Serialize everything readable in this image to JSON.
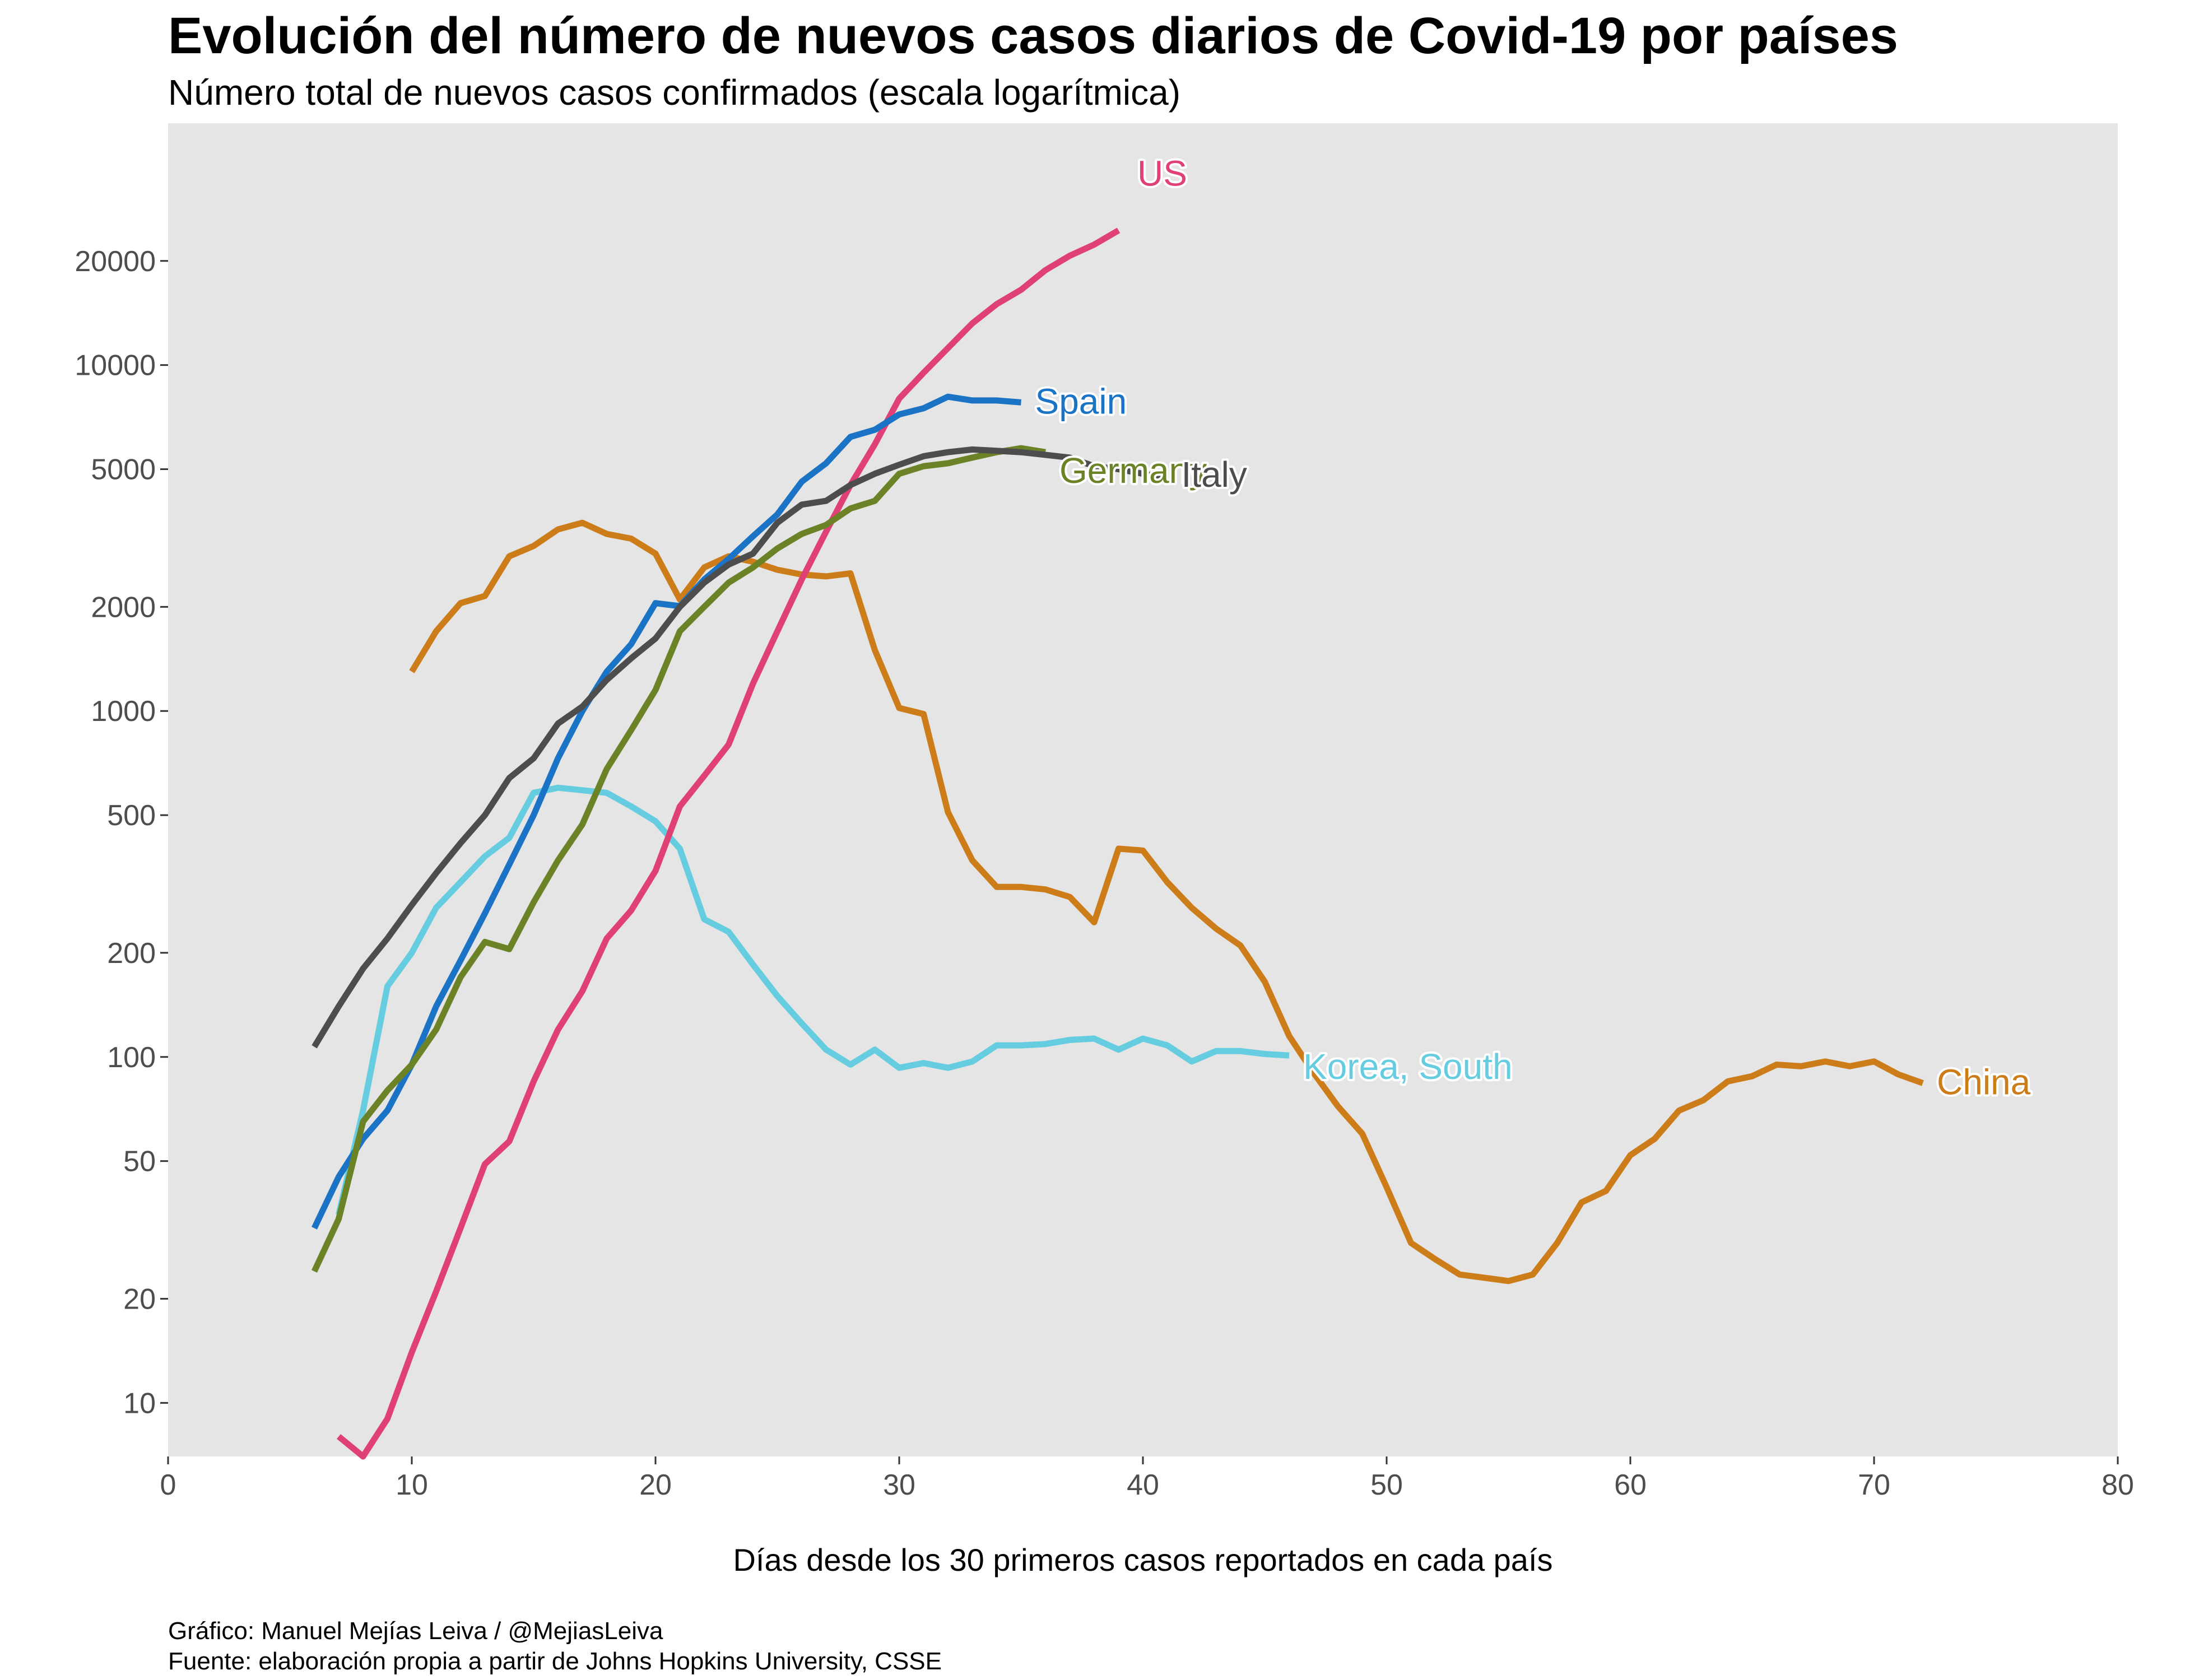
{
  "title": "Evolución del número de nuevos casos diarios de Covid-19 por países",
  "subtitle": "Número total de nuevos casos confirmados (escala logarítmica)",
  "caption": {
    "line1": "Gráfico: Manuel Mejías Leiva / @MejiasLeiva",
    "line2": "Fuente: elaboración propia a partir de Johns Hopkins University, CSSE"
  },
  "chart_data": {
    "type": "line",
    "title": "Evolución del número de nuevos casos diarios de Covid-19 por países",
    "subtitle": "Número total de nuevos casos confirmados (escala logarítmica)",
    "xlabel": "Días desde los 30 primeros casos reportados en cada país",
    "ylabel": "",
    "xlim": [
      0,
      80
    ],
    "ylim": [
      7,
      50000
    ],
    "yscale": "log",
    "grid": false,
    "background": "#e5e5e5",
    "xticks": [
      0,
      10,
      20,
      30,
      40,
      50,
      60,
      70,
      80
    ],
    "yticks": [
      10,
      20,
      50,
      100,
      200,
      500,
      1000,
      2000,
      5000,
      10000,
      20000
    ],
    "series": [
      {
        "name": "China",
        "color": "#cc7d1a",
        "x": [
          10,
          11,
          12,
          13,
          14,
          15,
          16,
          17,
          18,
          19,
          20,
          21,
          22,
          23,
          24,
          25,
          26,
          27,
          28,
          29,
          30,
          31,
          32,
          33,
          34,
          35,
          36,
          37,
          38,
          39,
          40,
          41,
          42,
          43,
          44,
          45,
          46,
          47,
          48,
          49,
          50,
          51,
          52,
          53,
          54,
          55,
          56,
          57,
          58,
          59,
          60,
          61,
          62,
          63,
          64,
          65,
          66,
          67,
          68,
          69,
          70,
          71,
          72
        ],
        "y": [
          1300,
          1700,
          2050,
          2150,
          2800,
          3000,
          3350,
          3500,
          3250,
          3150,
          2850,
          2100,
          2600,
          2800,
          2700,
          2560,
          2480,
          2450,
          2500,
          1500,
          1020,
          980,
          510,
          370,
          310,
          310,
          305,
          290,
          245,
          400,
          395,
          320,
          270,
          235,
          210,
          165,
          115,
          90,
          72,
          60,
          42,
          29,
          26,
          23.5,
          23,
          22.5,
          23.5,
          29,
          38,
          41,
          52,
          58,
          70,
          75,
          85,
          88,
          95,
          94,
          97,
          94,
          97,
          89,
          84
        ]
      },
      {
        "name": "Korea, South",
        "color": "#66cce0",
        "x": [
          7,
          8,
          9,
          10,
          11,
          12,
          13,
          14,
          15,
          16,
          17,
          18,
          19,
          20,
          21,
          22,
          23,
          24,
          25,
          26,
          27,
          28,
          29,
          30,
          31,
          32,
          33,
          34,
          35,
          36,
          37,
          38,
          39,
          40,
          41,
          42,
          43,
          44,
          45,
          46
        ],
        "y": [
          35,
          70,
          160,
          200,
          270,
          320,
          380,
          430,
          580,
          600,
          590,
          580,
          530,
          480,
          400,
          250,
          230,
          185,
          150,
          125,
          105,
          95,
          105,
          93,
          96,
          93,
          97,
          108,
          108,
          109,
          112,
          113,
          105,
          113,
          108,
          97,
          104,
          104,
          102,
          101
        ]
      },
      {
        "name": "US",
        "color": "#df4177",
        "x": [
          7,
          8,
          9,
          10,
          11,
          12,
          13,
          14,
          15,
          16,
          17,
          18,
          19,
          20,
          21,
          22,
          23,
          24,
          25,
          26,
          27,
          28,
          29,
          30,
          31,
          32,
          33,
          34,
          35,
          36,
          37,
          38,
          39
        ],
        "y": [
          8,
          7,
          9,
          14,
          21,
          32,
          49,
          57,
          85,
          120,
          155,
          220,
          265,
          345,
          530,
          650,
          800,
          1200,
          1700,
          2400,
          3300,
          4500,
          5900,
          8000,
          9500,
          11200,
          13200,
          15000,
          16500,
          18800,
          20700,
          22300,
          24500
        ]
      },
      {
        "name": "Spain",
        "color": "#1a73c4",
        "x": [
          6,
          7,
          8,
          9,
          10,
          11,
          12,
          13,
          14,
          15,
          16,
          17,
          18,
          19,
          20,
          21,
          22,
          23,
          24,
          25,
          26,
          27,
          28,
          29,
          30,
          31,
          32,
          33,
          34,
          35
        ],
        "y": [
          32,
          45,
          58,
          70,
          95,
          140,
          190,
          260,
          360,
          500,
          730,
          1000,
          1300,
          1560,
          2050,
          2010,
          2400,
          2750,
          3200,
          3700,
          4600,
          5200,
          6200,
          6500,
          7200,
          7500,
          8100,
          7900,
          7900,
          7800
        ]
      },
      {
        "name": "Germany",
        "color": "#6b8226",
        "x": [
          6,
          7,
          8,
          9,
          10,
          11,
          12,
          13,
          14,
          15,
          16,
          17,
          18,
          19,
          20,
          21,
          22,
          23,
          24,
          25,
          26,
          27,
          28,
          29,
          30,
          31,
          32,
          33,
          34,
          35,
          36
        ],
        "y": [
          24,
          34,
          65,
          80,
          95,
          120,
          170,
          215,
          205,
          280,
          370,
          470,
          680,
          880,
          1150,
          1700,
          2000,
          2350,
          2600,
          2950,
          3250,
          3450,
          3850,
          4050,
          4850,
          5100,
          5200,
          5400,
          5600,
          5750,
          5600
        ]
      },
      {
        "name": "Italy",
        "color": "#4d4d4d",
        "x": [
          6,
          7,
          8,
          9,
          10,
          11,
          12,
          13,
          14,
          15,
          16,
          17,
          18,
          19,
          20,
          21,
          22,
          23,
          24,
          25,
          26,
          27,
          28,
          29,
          30,
          31,
          32,
          33,
          34,
          35,
          36,
          37,
          38,
          39,
          40,
          41
        ],
        "y": [
          107,
          140,
          180,
          220,
          275,
          340,
          415,
          500,
          640,
          730,
          920,
          1030,
          1230,
          1420,
          1620,
          2000,
          2350,
          2650,
          2850,
          3500,
          3950,
          4050,
          4500,
          4850,
          5150,
          5450,
          5600,
          5700,
          5650,
          5600,
          5500,
          5400,
          5100,
          5000,
          4850,
          4700
        ]
      }
    ]
  }
}
